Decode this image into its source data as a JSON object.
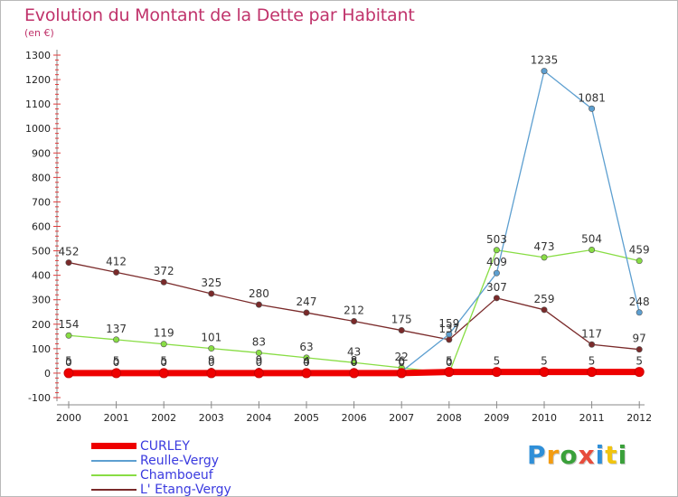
{
  "title": "Evolution du Montant de la Dette par Habitant",
  "subtitle": "(en €)",
  "chart_data": {
    "type": "line",
    "x": [
      "2000",
      "2001",
      "2002",
      "2003",
      "2004",
      "2005",
      "2006",
      "2007",
      "2008",
      "2009",
      "2010",
      "2011",
      "2012"
    ],
    "ylim": [
      -100,
      1300
    ],
    "yticks": [
      -100,
      0,
      100,
      200,
      300,
      400,
      500,
      600,
      700,
      800,
      900,
      1000,
      1100,
      1200,
      1300
    ],
    "grid": false,
    "legend_position": "bottom-left",
    "series": [
      {
        "name": "CURLEY",
        "color": "#ee0000",
        "values": [
          0,
          0,
          0,
          0,
          0,
          0,
          0,
          0,
          5,
          5,
          5,
          5,
          5
        ],
        "labels": [
          "0",
          "0",
          "0",
          "0",
          "0",
          "0",
          "0",
          "0",
          "5",
          "5",
          "5",
          "5",
          "5"
        ]
      },
      {
        "name": "Reulle-Vergy",
        "color": "#5d9fd0",
        "values": [
          5,
          5,
          5,
          9,
          9,
          4,
          8,
          6,
          159,
          409,
          1235,
          1081,
          248
        ],
        "labels": [
          "5",
          "5",
          "5",
          "9",
          "9",
          "4",
          "8",
          "6",
          "159",
          "409",
          "1235",
          "1081",
          "248"
        ]
      },
      {
        "name": "Chamboeuf",
        "color": "#88dd44",
        "values": [
          154,
          137,
          119,
          101,
          83,
          63,
          43,
          22,
          0,
          503,
          473,
          504,
          459
        ],
        "labels": [
          "154",
          "137",
          "119",
          "101",
          "83",
          "63",
          "43",
          "22",
          "0",
          "503",
          "473",
          "504",
          "459"
        ]
      },
      {
        "name": "L' Etang-Vergy",
        "color": "#7a2a2a",
        "values": [
          452,
          412,
          372,
          325,
          280,
          247,
          212,
          175,
          137,
          307,
          259,
          117,
          97
        ],
        "labels": [
          "452",
          "412",
          "372",
          "325",
          "280",
          "247",
          "212",
          "175",
          "137",
          "307",
          "259",
          "117",
          "97"
        ]
      }
    ]
  },
  "legend": {
    "items": [
      {
        "name": "CURLEY",
        "color": "#ee0000"
      },
      {
        "name": "Reulle-Vergy",
        "color": "#5d9fd0"
      },
      {
        "name": "Chamboeuf",
        "color": "#88dd44"
      },
      {
        "name": "L' Etang-Vergy",
        "color": "#7a2a2a"
      }
    ]
  },
  "logo": {
    "letters": [
      "P",
      "r",
      "o",
      "x",
      "i",
      "t",
      "i"
    ],
    "colors": [
      "#2f8fd8",
      "#f39c12",
      "#3aa03a",
      "#e74c3c",
      "#2f8fd8",
      "#f1c40f",
      "#3aa03a"
    ]
  }
}
